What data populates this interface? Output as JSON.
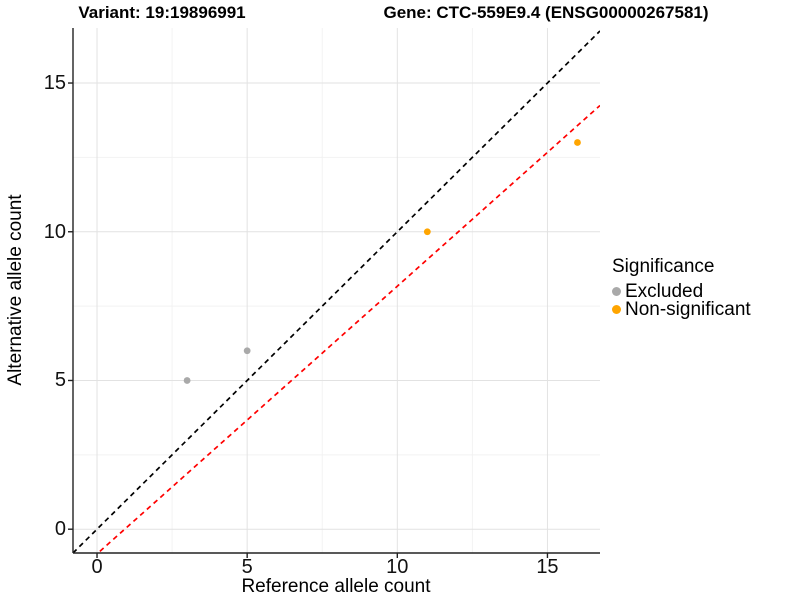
{
  "chart_data": {
    "type": "scatter",
    "title_left": "Variant: 19:19896991",
    "title_right": "Gene: CTC-559E9.4 (ENSG00000267581)",
    "xlabel": "Reference allele count",
    "ylabel": "Alternative allele count",
    "xlim": [
      -0.8,
      16.75
    ],
    "ylim": [
      -0.8,
      16.85
    ],
    "xticks": [
      0,
      5,
      10,
      15
    ],
    "yticks": [
      0,
      5,
      10,
      15
    ],
    "xticks_minor": [
      2.5,
      7.5,
      12.5
    ],
    "yticks_minor": [
      2.5,
      7.5,
      12.5
    ],
    "grid": true,
    "legend_position": "right",
    "series": [
      {
        "name": "Excluded",
        "color": "#a9a9a9",
        "points": [
          [
            3,
            5
          ],
          [
            5,
            6
          ]
        ]
      },
      {
        "name": "Non-significant",
        "color": "#ffa500",
        "points": [
          [
            11,
            10
          ],
          [
            16,
            13
          ]
        ]
      }
    ],
    "lines": [
      {
        "name": "identity-line",
        "color": "#000000",
        "style": "dashed",
        "slope": 1,
        "intercept": 0
      },
      {
        "name": "fit-line",
        "color": "#ff0000",
        "style": "dashed",
        "slope": 0.9,
        "intercept": -0.83
      }
    ],
    "legend": {
      "title": "Significance",
      "items": [
        {
          "label": "Excluded",
          "color": "#a9a9a9"
        },
        {
          "label": "Non-significant",
          "color": "#ffa500"
        }
      ]
    },
    "colors": {
      "axis_line": "#222222",
      "tick_mark": "#222222",
      "grid_major": "#e2e2e2",
      "grid_minor": "#f2f2f2",
      "background": "#ffffff"
    }
  }
}
